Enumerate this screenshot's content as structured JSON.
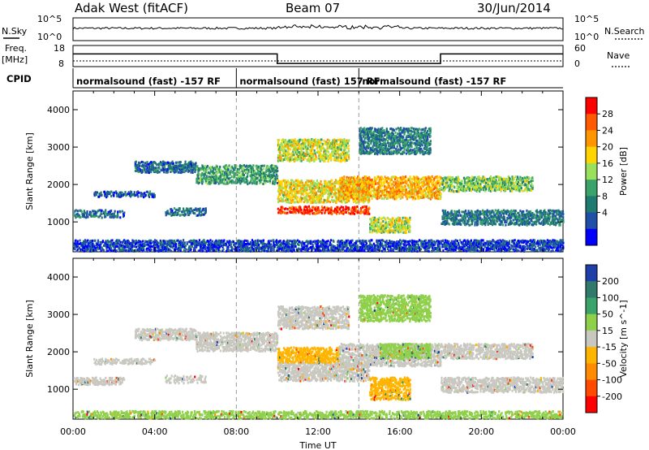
{
  "header": {
    "station": "Adak West (fitACF)",
    "beam": "Beam 07",
    "date": "30/Jun/2014"
  },
  "noise_panel": {
    "left_label": "N.Sky",
    "right_label": "N.Search",
    "left_ticks": [
      "10^5",
      "10^0"
    ],
    "right_ticks": [
      "10^5",
      "10^0"
    ]
  },
  "freq_panel": {
    "left_label_top": "Freq.",
    "left_label_bottom": "[MHz]",
    "left_ticks": [
      "18",
      "8"
    ],
    "right_label": "Nave",
    "right_ticks": [
      "60",
      "0"
    ],
    "freq_steps": [
      {
        "start_hour": 0.0,
        "end_hour": 10.0,
        "level": 0.6
      },
      {
        "start_hour": 10.0,
        "end_hour": 18.0,
        "level": 0.15
      },
      {
        "start_hour": 18.0,
        "end_hour": 24.0,
        "level": 0.6
      }
    ]
  },
  "cpid_panel": {
    "label": "CPID",
    "segments": [
      {
        "start_hour": 0.0,
        "text": "normalsound (fast) -157 RF"
      },
      {
        "start_hour": 8.0,
        "text": "normalsound (fast) 157 RF"
      },
      {
        "start_hour": 14.0,
        "text": "normalsound (fast) -157 RF"
      }
    ]
  },
  "chart_data": [
    {
      "type": "heatmap",
      "ylabel": "Slant Range [km]",
      "ylim": [
        200,
        4500
      ],
      "yticks": [
        1000,
        2000,
        3000,
        4000
      ],
      "xlim": [
        0,
        24
      ],
      "colorbar": {
        "label": "Power [dB]",
        "ticks": [
          "28",
          "24",
          "20",
          "16",
          "12",
          "8",
          "4"
        ],
        "colors": [
          "#ff0000",
          "#ff5a00",
          "#ff9600",
          "#ffd400",
          "#9be05a",
          "#3aa36a",
          "#1f7a70",
          "#1f4fa8",
          "#0000ff"
        ]
      },
      "scatter_bands": [
        {
          "x0": 0.0,
          "x1": 2.5,
          "r0": 1100,
          "r1": 1300,
          "level": 0.2
        },
        {
          "x0": 1.0,
          "x1": 4.0,
          "r0": 1650,
          "r1": 1800,
          "level": 0.15
        },
        {
          "x0": 4.5,
          "x1": 6.5,
          "r0": 1150,
          "r1": 1350,
          "level": 0.2
        },
        {
          "x0": 3.0,
          "x1": 6.0,
          "r0": 2300,
          "r1": 2600,
          "level": 0.2
        },
        {
          "x0": 6.0,
          "x1": 10.0,
          "r0": 2000,
          "r1": 2500,
          "level": 0.35
        },
        {
          "x0": 10.0,
          "x1": 14.5,
          "r0": 1200,
          "r1": 1400,
          "level": 0.95
        },
        {
          "x0": 10.0,
          "x1": 14.5,
          "r0": 1500,
          "r1": 2100,
          "level": 0.6
        },
        {
          "x0": 10.0,
          "x1": 13.5,
          "r0": 2600,
          "r1": 3200,
          "level": 0.55
        },
        {
          "x0": 13.0,
          "x1": 18.0,
          "r0": 1600,
          "r1": 2200,
          "level": 0.7
        },
        {
          "x0": 14.0,
          "x1": 17.5,
          "r0": 2800,
          "r1": 3500,
          "level": 0.25
        },
        {
          "x0": 14.5,
          "x1": 16.5,
          "r0": 700,
          "r1": 1100,
          "level": 0.55
        },
        {
          "x0": 18.0,
          "x1": 22.5,
          "r0": 1800,
          "r1": 2200,
          "level": 0.45
        },
        {
          "x0": 18.0,
          "x1": 24.0,
          "r0": 900,
          "r1": 1300,
          "level": 0.25
        },
        {
          "x0": 0.0,
          "x1": 24.0,
          "r0": 200,
          "r1": 500,
          "level": 0.1
        }
      ]
    },
    {
      "type": "heatmap",
      "ylabel": "Slant Range [km]",
      "xlabel": "Time UT",
      "ylim": [
        200,
        4500
      ],
      "yticks": [
        1000,
        2000,
        3000,
        4000
      ],
      "xlim": [
        0,
        24
      ],
      "xticks": [
        "00:00",
        "04:00",
        "08:00",
        "12:00",
        "16:00",
        "20:00",
        "00:00"
      ],
      "colorbar": {
        "label": "Velocity [m s^-1]",
        "ticks": [
          "200",
          "100",
          "50",
          "15",
          "-15",
          "-50",
          "-100",
          "-200"
        ],
        "colors": [
          "#1f3fa8",
          "#2f7a6a",
          "#3aa36a",
          "#8fd04a",
          "#c8c8c0",
          "#ffb400",
          "#ff8c00",
          "#ff4a00",
          "#ff0000"
        ]
      },
      "scatter_bands": [
        {
          "x0": 0.0,
          "x1": 2.5,
          "r0": 1100,
          "r1": 1300,
          "color": "#c8c8c0"
        },
        {
          "x0": 1.0,
          "x1": 4.0,
          "r0": 1650,
          "r1": 1800,
          "color": "#c8c8c0"
        },
        {
          "x0": 4.5,
          "x1": 6.5,
          "r0": 1150,
          "r1": 1350,
          "color": "#c8c8c0"
        },
        {
          "x0": 3.0,
          "x1": 6.0,
          "r0": 2300,
          "r1": 2600,
          "color": "#c8c8c0"
        },
        {
          "x0": 6.0,
          "x1": 10.0,
          "r0": 2000,
          "r1": 2500,
          "color": "#c8c8c0"
        },
        {
          "x0": 10.0,
          "x1": 14.5,
          "r0": 1200,
          "r1": 1700,
          "color": "#c8c8c0"
        },
        {
          "x0": 10.0,
          "x1": 13.0,
          "r0": 1700,
          "r1": 2100,
          "color": "#ffb400"
        },
        {
          "x0": 10.0,
          "x1": 13.5,
          "r0": 2600,
          "r1": 3200,
          "color": "#c8c8c0"
        },
        {
          "x0": 13.0,
          "x1": 18.0,
          "r0": 1600,
          "r1": 2200,
          "color": "#c8c8c0"
        },
        {
          "x0": 15.0,
          "x1": 17.5,
          "r0": 1800,
          "r1": 2200,
          "color": "#8fd04a"
        },
        {
          "x0": 14.0,
          "x1": 17.5,
          "r0": 2800,
          "r1": 3500,
          "color": "#8fd04a"
        },
        {
          "x0": 14.5,
          "x1": 16.5,
          "r0": 700,
          "r1": 1300,
          "color": "#ffb400"
        },
        {
          "x0": 18.0,
          "x1": 22.5,
          "r0": 1800,
          "r1": 2200,
          "color": "#c8c8c0"
        },
        {
          "x0": 18.0,
          "x1": 24.0,
          "r0": 900,
          "r1": 1300,
          "color": "#c8c8c0"
        },
        {
          "x0": 0.0,
          "x1": 24.0,
          "r0": 200,
          "r1": 400,
          "color": "#8fd04a"
        }
      ]
    }
  ]
}
